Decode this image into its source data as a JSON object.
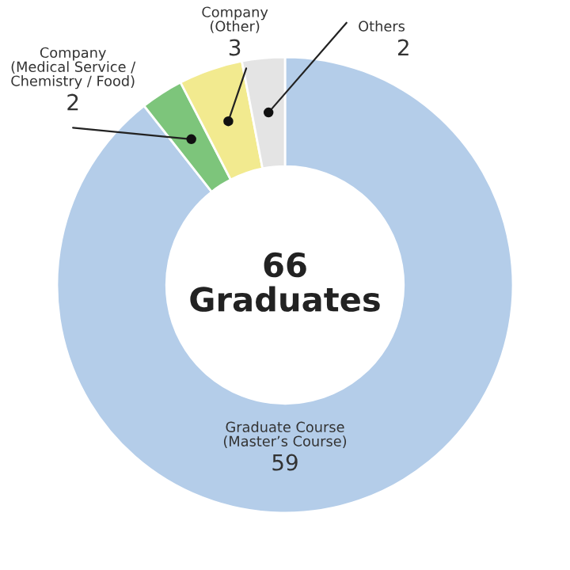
{
  "chart_data": {
    "type": "donut",
    "categories": [
      "Graduate Course\n(Master’s Course)",
      "Company\n(Medical Service /\nChemistry / Food)",
      "Company\n(Other)",
      "Others"
    ],
    "values": [
      59,
      2,
      3,
      2
    ],
    "colors": [
      "#b4cde9",
      "#7dc57b",
      "#f2ea8f",
      "#e4e4e4"
    ],
    "data_labels": true,
    "annotations": [
      "66\nGraduates"
    ]
  }
}
